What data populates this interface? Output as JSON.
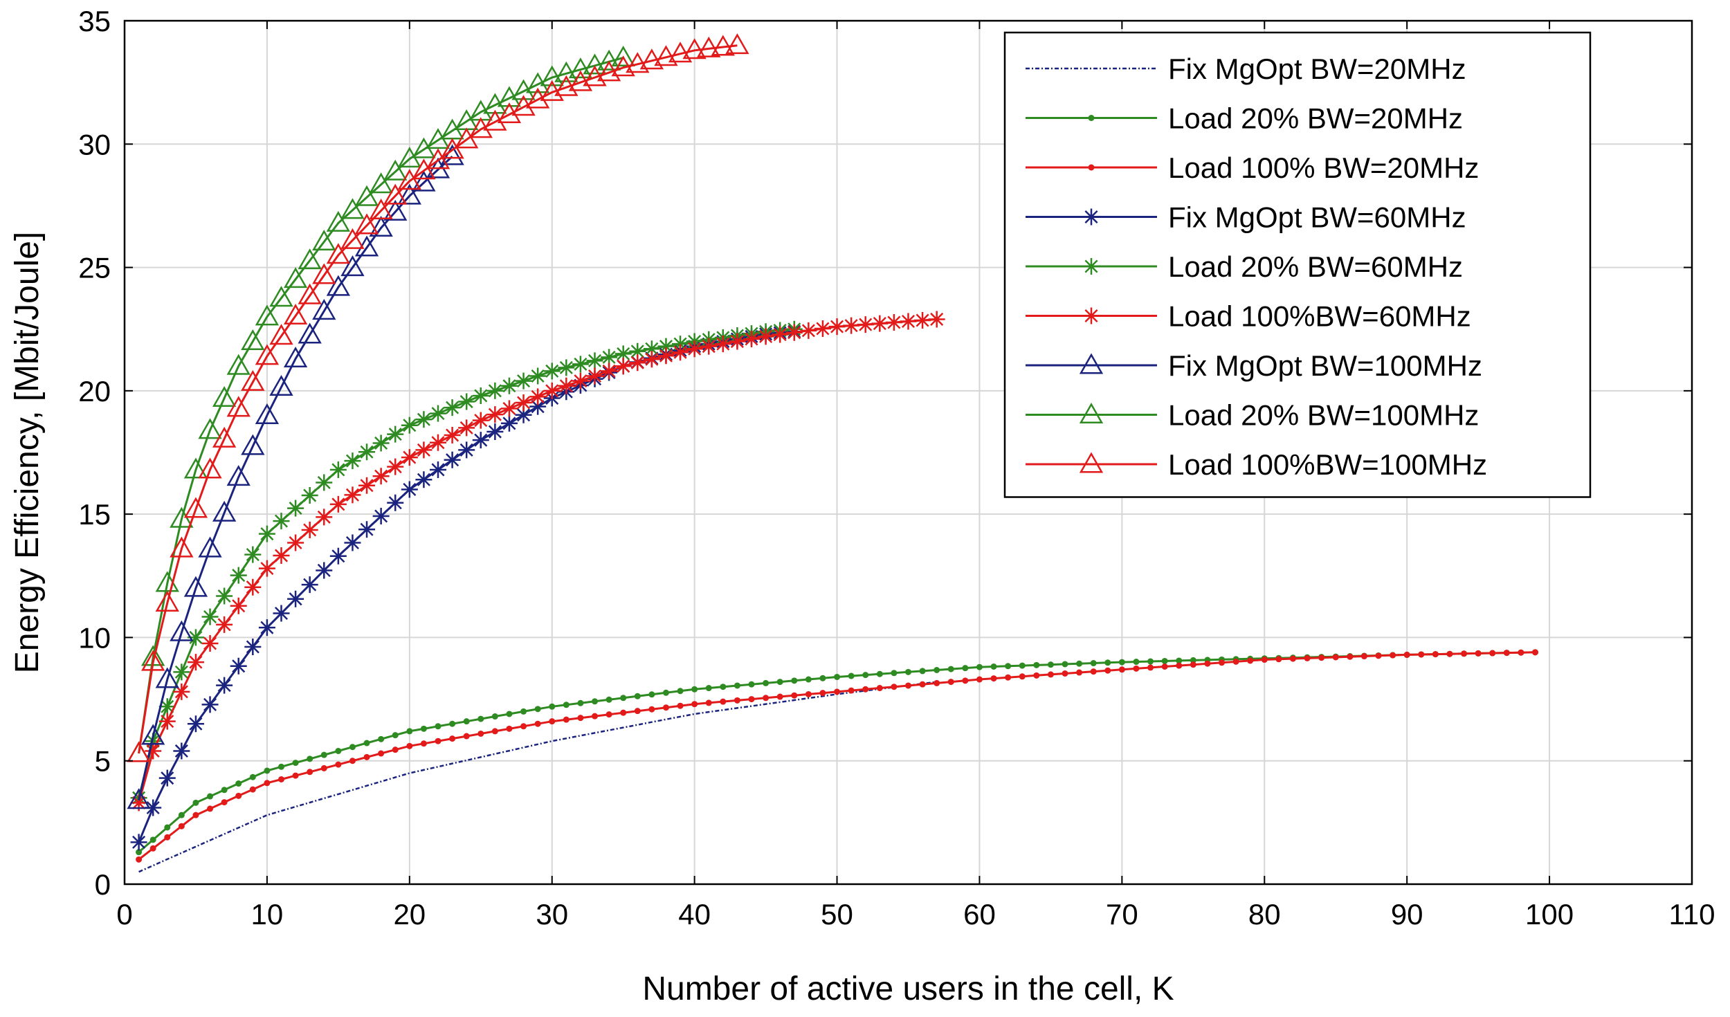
{
  "chart_data": {
    "type": "line",
    "title": "",
    "xlabel": "Number of active users in the cell, K",
    "ylabel": "Energy Efficiency, [Mbit/Joule]",
    "xlim": [
      0,
      110
    ],
    "ylim": [
      0,
      35
    ],
    "xticks": [
      0,
      10,
      20,
      30,
      40,
      50,
      60,
      70,
      80,
      90,
      100,
      110
    ],
    "yticks": [
      0,
      5,
      10,
      15,
      20,
      25,
      30,
      35
    ],
    "grid": true,
    "legend_position": "top-right",
    "colors": {
      "blue": "#1a237e",
      "green": "#2e8b22",
      "red": "#e21a1a"
    },
    "series": [
      {
        "name": "Fix MgOpt BW=20MHz",
        "color": "blue",
        "marker": "none",
        "dash": true,
        "k_max": 57,
        "points": [
          [
            1,
            0.5
          ],
          [
            10,
            2.8
          ],
          [
            20,
            4.5
          ],
          [
            30,
            5.8
          ],
          [
            40,
            6.9
          ],
          [
            50,
            7.7
          ],
          [
            57,
            8.2
          ]
        ]
      },
      {
        "name": "Load 20% BW=20MHz",
        "color": "green",
        "marker": "dot",
        "dash": false,
        "k_max": 99,
        "points": [
          [
            1,
            1.3
          ],
          [
            5,
            3.3
          ],
          [
            10,
            4.6
          ],
          [
            20,
            6.2
          ],
          [
            30,
            7.2
          ],
          [
            40,
            7.9
          ],
          [
            50,
            8.4
          ],
          [
            60,
            8.8
          ],
          [
            70,
            9.0
          ],
          [
            80,
            9.15
          ],
          [
            90,
            9.3
          ],
          [
            99,
            9.4
          ]
        ]
      },
      {
        "name": "Load 100% BW=20MHz",
        "color": "red",
        "marker": "dot",
        "dash": false,
        "k_max": 99,
        "points": [
          [
            1,
            1.0
          ],
          [
            5,
            2.8
          ],
          [
            10,
            4.1
          ],
          [
            20,
            5.6
          ],
          [
            30,
            6.6
          ],
          [
            40,
            7.3
          ],
          [
            50,
            7.8
          ],
          [
            60,
            8.3
          ],
          [
            70,
            8.7
          ],
          [
            80,
            9.1
          ],
          [
            90,
            9.3
          ],
          [
            99,
            9.4
          ]
        ]
      },
      {
        "name": "Fix MgOpt BW=60MHz",
        "color": "blue",
        "marker": "star",
        "dash": false,
        "k_max": 47,
        "points": [
          [
            1,
            1.7
          ],
          [
            2,
            3.1
          ],
          [
            3,
            4.3
          ],
          [
            5,
            6.5
          ],
          [
            10,
            10.4
          ],
          [
            15,
            13.3
          ],
          [
            20,
            16.0
          ],
          [
            25,
            18.0
          ],
          [
            30,
            19.7
          ],
          [
            35,
            21.0
          ],
          [
            40,
            21.8
          ],
          [
            45,
            22.3
          ],
          [
            47,
            22.4
          ]
        ]
      },
      {
        "name": "Load 20% BW=60MHz",
        "color": "green",
        "marker": "star",
        "dash": false,
        "k_max": 47,
        "points": [
          [
            1,
            3.5
          ],
          [
            2,
            5.8
          ],
          [
            5,
            10.0
          ],
          [
            10,
            14.2
          ],
          [
            15,
            16.8
          ],
          [
            20,
            18.6
          ],
          [
            25,
            19.8
          ],
          [
            30,
            20.8
          ],
          [
            35,
            21.5
          ],
          [
            40,
            22.0
          ],
          [
            45,
            22.4
          ],
          [
            47,
            22.5
          ]
        ]
      },
      {
        "name": "Load 100%BW=60MHz",
        "color": "red",
        "marker": "star",
        "dash": false,
        "k_max": 57,
        "points": [
          [
            1,
            3.3
          ],
          [
            2,
            5.4
          ],
          [
            5,
            9.0
          ],
          [
            10,
            12.8
          ],
          [
            15,
            15.4
          ],
          [
            20,
            17.3
          ],
          [
            25,
            18.8
          ],
          [
            30,
            20.0
          ],
          [
            35,
            21.0
          ],
          [
            40,
            21.7
          ],
          [
            45,
            22.2
          ],
          [
            50,
            22.6
          ],
          [
            57,
            22.9
          ]
        ]
      },
      {
        "name": "Fix MgOpt BW=100MHz",
        "color": "blue",
        "marker": "triangle",
        "dash": false,
        "k_max": 23,
        "points": [
          [
            1,
            3.4
          ],
          [
            2,
            6.0
          ],
          [
            3,
            8.3
          ],
          [
            4,
            10.2
          ],
          [
            5,
            12.0
          ],
          [
            6,
            13.6
          ],
          [
            8,
            16.5
          ],
          [
            10,
            19.0
          ],
          [
            12,
            21.3
          ],
          [
            15,
            24.2
          ],
          [
            18,
            26.6
          ],
          [
            20,
            27.9
          ],
          [
            23,
            29.5
          ]
        ]
      },
      {
        "name": "Load 20% BW=100MHz",
        "color": "green",
        "marker": "triangle",
        "dash": false,
        "k_max": 35,
        "points": [
          [
            1,
            5.3
          ],
          [
            2,
            9.2
          ],
          [
            3,
            12.2
          ],
          [
            4,
            14.8
          ],
          [
            5,
            16.8
          ],
          [
            6,
            18.4
          ],
          [
            8,
            21.0
          ],
          [
            10,
            23.0
          ],
          [
            15,
            26.8
          ],
          [
            20,
            29.4
          ],
          [
            25,
            31.3
          ],
          [
            30,
            32.7
          ],
          [
            35,
            33.5
          ]
        ]
      },
      {
        "name": "Load 100%BW=100MHz",
        "color": "red",
        "marker": "triangle",
        "dash": false,
        "k_max": 43,
        "points": [
          [
            1,
            5.3
          ],
          [
            2,
            9.0
          ],
          [
            3,
            11.4
          ],
          [
            4,
            13.6
          ],
          [
            5,
            15.2
          ],
          [
            6,
            16.8
          ],
          [
            8,
            19.3
          ],
          [
            10,
            21.4
          ],
          [
            15,
            25.5
          ],
          [
            20,
            28.5
          ],
          [
            25,
            30.6
          ],
          [
            30,
            32.1
          ],
          [
            35,
            33.1
          ],
          [
            40,
            33.8
          ],
          [
            43,
            34.0
          ]
        ]
      }
    ]
  }
}
